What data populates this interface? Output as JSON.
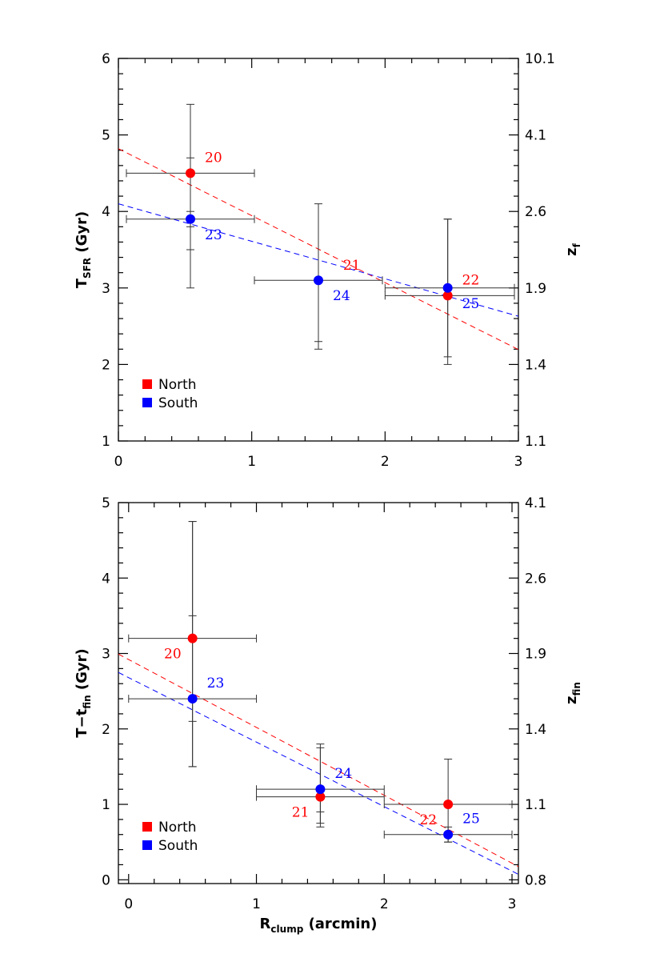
{
  "chart_data": [
    {
      "type": "scatter",
      "title": "",
      "xlabel": "",
      "ylabel": {
        "main": "T",
        "sub": "SFR",
        "tail": " (Gyr)"
      },
      "y2label": {
        "main": "z",
        "sub": "f",
        "tail": ""
      },
      "xlim": [
        0,
        3
      ],
      "ylim": [
        1,
        6
      ],
      "x_ticks": [
        {
          "value": 0,
          "label": "0"
        },
        {
          "value": 1,
          "label": "1"
        },
        {
          "value": 2,
          "label": "2"
        },
        {
          "value": 3,
          "label": "3"
        }
      ],
      "y_ticks": [
        {
          "value": 1,
          "label": "1"
        },
        {
          "value": 2,
          "label": "2"
        },
        {
          "value": 3,
          "label": "3"
        },
        {
          "value": 4,
          "label": "4"
        },
        {
          "value": 5,
          "label": "5"
        },
        {
          "value": 6,
          "label": "6"
        }
      ],
      "y2_ticks": [
        {
          "value": 1,
          "label": "1.1"
        },
        {
          "value": 2,
          "label": "1.4"
        },
        {
          "value": 3,
          "label": "1.9"
        },
        {
          "value": 4,
          "label": "2.6"
        },
        {
          "value": 5,
          "label": "4.1"
        },
        {
          "value": 6,
          "label": "10.1"
        }
      ],
      "grid": false,
      "legend_position": "bottom-left",
      "series": [
        {
          "name": "North",
          "color": "#ff0000",
          "points": [
            {
              "x": 0.54,
              "y": 4.5,
              "xerr": [
                0.06,
                1.02
              ],
              "yerr": [
                3.8,
                5.4
              ],
              "yerr_tick": 4.7,
              "label": "20",
              "label_pos": "upper-right"
            },
            {
              "x": 2.47,
              "y": 2.9,
              "xerr": [
                2.0,
                2.97
              ],
              "yerr": [
                2.0,
                3.9
              ],
              "label": "22",
              "label_pos": "upper-right"
            }
          ],
          "fit": {
            "intercept": 4.82,
            "slope": -0.875
          },
          "extra_labels": [
            {
              "x": 1.75,
              "y": 3.3,
              "label": "21"
            }
          ]
        },
        {
          "name": "South",
          "color": "#0000ff",
          "points": [
            {
              "x": 0.54,
              "y": 3.9,
              "xerr": [
                0.06,
                1.02
              ],
              "yerr": [
                3.0,
                4.0
              ],
              "yerr_tick": 3.5,
              "label": "23",
              "label_pos": "lower-right"
            },
            {
              "x": 1.5,
              "y": 3.1,
              "xerr": [
                1.02,
                1.98
              ],
              "yerr": [
                2.2,
                4.1
              ],
              "yerr_tick": 2.3,
              "label": "24",
              "label_pos": "lower-right"
            },
            {
              "x": 2.47,
              "y": 3.0,
              "xerr": [
                2.0,
                2.97
              ],
              "yerr": [
                2.1,
                3.9
              ],
              "label": "25",
              "label_pos": "lower-right"
            }
          ],
          "fit": {
            "intercept": 4.1,
            "slope": -0.49
          }
        }
      ]
    },
    {
      "type": "scatter",
      "title": "",
      "xlabel": {
        "main": "R",
        "sub": "clump",
        "tail": " (arcmin)"
      },
      "ylabel": {
        "main": "T−t",
        "sub": "fin",
        "tail": " (Gyr)"
      },
      "y2label": {
        "main": "z",
        "sub": "fin",
        "tail": ""
      },
      "xlim": [
        -0.08,
        3.05
      ],
      "ylim": [
        -0.05,
        5
      ],
      "x_ticks": [
        {
          "value": 0,
          "label": "0"
        },
        {
          "value": 1,
          "label": "1"
        },
        {
          "value": 2,
          "label": "2"
        },
        {
          "value": 3,
          "label": "3"
        }
      ],
      "y_ticks": [
        {
          "value": 0,
          "label": "0"
        },
        {
          "value": 1,
          "label": "1"
        },
        {
          "value": 2,
          "label": "2"
        },
        {
          "value": 3,
          "label": "3"
        },
        {
          "value": 4,
          "label": "4"
        },
        {
          "value": 5,
          "label": "5"
        }
      ],
      "y2_ticks": [
        {
          "value": 0,
          "label": "0.8"
        },
        {
          "value": 1,
          "label": "1.1"
        },
        {
          "value": 2,
          "label": "1.4"
        },
        {
          "value": 3,
          "label": "1.9"
        },
        {
          "value": 4,
          "label": "2.6"
        },
        {
          "value": 5,
          "label": "4.1"
        }
      ],
      "grid": false,
      "legend_position": "bottom-left",
      "series": [
        {
          "name": "North",
          "color": "#ff0000",
          "points": [
            {
              "x": 0.5,
              "y": 3.2,
              "xerr": [
                0.0,
                1.0
              ],
              "yerr": [
                1.5,
                4.75
              ],
              "yerr_tick": 3.5,
              "label": "20",
              "label_pos": "lower-left"
            },
            {
              "x": 1.5,
              "y": 1.1,
              "xerr": [
                1.0,
                2.0
              ],
              "yerr": [
                0.7,
                1.8
              ],
              "yerr_tick": 0.9,
              "label": "21",
              "label_pos": "lower-left"
            },
            {
              "x": 2.5,
              "y": 1.0,
              "xerr": [
                2.0,
                3.0
              ],
              "yerr": [
                0.5,
                1.6
              ],
              "label": "22",
              "label_pos": "lower-left"
            }
          ],
          "fit": {
            "intercept": 2.92,
            "slope": -0.9
          }
        },
        {
          "name": "South",
          "color": "#0000ff",
          "points": [
            {
              "x": 0.5,
              "y": 2.4,
              "xerr": [
                0.0,
                1.0
              ],
              "yerr": [
                1.5,
                4.75
              ],
              "yerr_tick": 2.1,
              "label": "23",
              "label_pos": "upper-right"
            },
            {
              "x": 1.5,
              "y": 1.2,
              "xerr": [
                1.0,
                2.0
              ],
              "yerr": [
                0.75,
                1.75
              ],
              "label": "24",
              "label_pos": "upper-right"
            },
            {
              "x": 2.5,
              "y": 0.6,
              "xerr": [
                2.0,
                3.0
              ],
              "yerr": [
                0.5,
                0.7
              ],
              "label": "25",
              "label_pos": "upper-right"
            }
          ],
          "fit": {
            "intercept": 2.68,
            "slope": -0.855
          }
        }
      ]
    }
  ]
}
